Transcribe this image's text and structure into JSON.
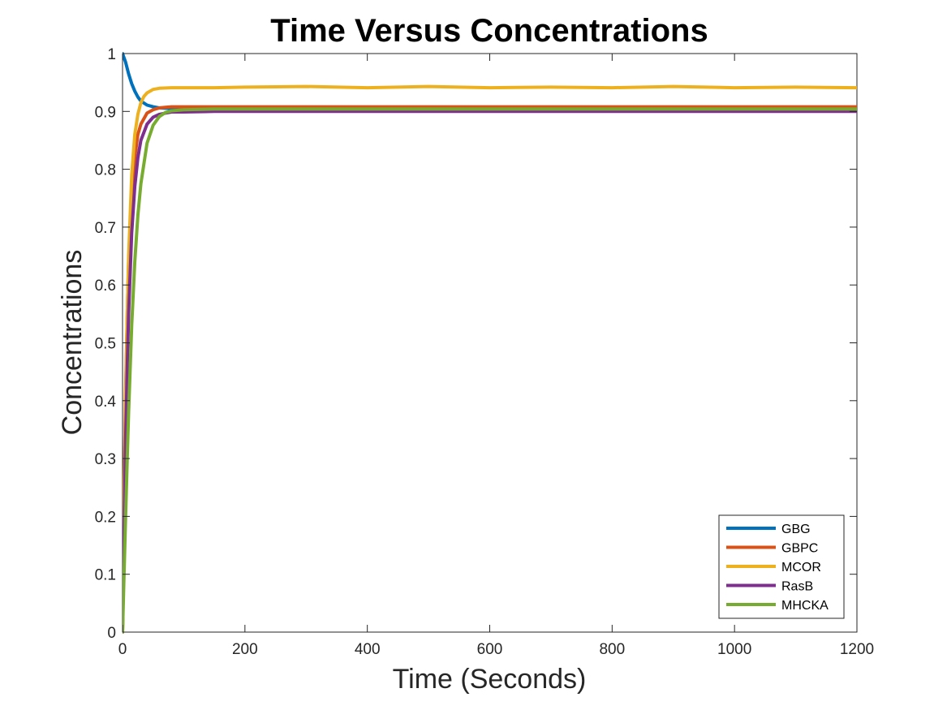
{
  "chart_data": {
    "type": "line",
    "title": "Time Versus Concentrations",
    "xlabel": "Time (Seconds)",
    "ylabel": "Concentrations",
    "xlim": [
      0,
      1200
    ],
    "ylim": [
      0,
      1
    ],
    "xticks": [
      0,
      200,
      400,
      600,
      800,
      1000,
      1200
    ],
    "xtick_labels": [
      "0",
      "200",
      "400",
      "600",
      "800",
      "1000",
      "1200"
    ],
    "yticks": [
      0,
      0.1,
      0.2,
      0.3,
      0.4,
      0.5,
      0.6,
      0.7,
      0.8,
      0.9,
      1
    ],
    "ytick_labels": [
      "0",
      "0.1",
      "0.2",
      "0.3",
      "0.4",
      "0.5",
      "0.6",
      "0.7",
      "0.8",
      "0.9",
      "1"
    ],
    "grid": false,
    "legend_position": "bottom-right",
    "series": [
      {
        "name": "GBG",
        "color": "#0072BD",
        "x": [
          0,
          5,
          10,
          15,
          20,
          25,
          30,
          40,
          50,
          60,
          80,
          100,
          150,
          200,
          400,
          600,
          800,
          1000,
          1200
        ],
        "y": [
          1.0,
          0.985,
          0.965,
          0.948,
          0.935,
          0.925,
          0.918,
          0.911,
          0.908,
          0.906,
          0.905,
          0.905,
          0.905,
          0.905,
          0.905,
          0.905,
          0.905,
          0.905,
          0.905
        ]
      },
      {
        "name": "GBPC",
        "color": "#D95319",
        "x": [
          0,
          2,
          5,
          8,
          10,
          15,
          20,
          25,
          30,
          40,
          50,
          60,
          70,
          80,
          100,
          150,
          200,
          400,
          600,
          800,
          1000,
          1200
        ],
        "y": [
          0.0,
          0.2,
          0.42,
          0.56,
          0.64,
          0.755,
          0.82,
          0.86,
          0.878,
          0.897,
          0.903,
          0.906,
          0.907,
          0.908,
          0.908,
          0.908,
          0.908,
          0.908,
          0.908,
          0.908,
          0.908,
          0.908
        ]
      },
      {
        "name": "MCOR",
        "color": "#EDB120",
        "x": [
          0,
          2,
          5,
          8,
          10,
          15,
          20,
          25,
          30,
          35,
          40,
          50,
          60,
          80,
          100,
          150,
          200,
          300,
          400,
          500,
          600,
          700,
          800,
          900,
          1000,
          1100,
          1200
        ],
        "y": [
          0.0,
          0.18,
          0.4,
          0.56,
          0.65,
          0.79,
          0.86,
          0.895,
          0.915,
          0.926,
          0.932,
          0.938,
          0.94,
          0.941,
          0.941,
          0.941,
          0.942,
          0.943,
          0.941,
          0.943,
          0.941,
          0.942,
          0.941,
          0.943,
          0.941,
          0.942,
          0.941
        ]
      },
      {
        "name": "RasB",
        "color": "#7E2F8E",
        "x": [
          0,
          2,
          5,
          8,
          10,
          15,
          20,
          25,
          30,
          40,
          50,
          60,
          70,
          80,
          100,
          150,
          200,
          400,
          600,
          800,
          1000,
          1200
        ],
        "y": [
          0.0,
          0.14,
          0.33,
          0.47,
          0.55,
          0.69,
          0.77,
          0.82,
          0.85,
          0.878,
          0.89,
          0.895,
          0.897,
          0.899,
          0.899,
          0.9,
          0.9,
          0.9,
          0.9,
          0.9,
          0.9,
          0.9
        ]
      },
      {
        "name": "MHCKA",
        "color": "#77AC30",
        "x": [
          0,
          2,
          5,
          8,
          10,
          15,
          20,
          25,
          30,
          40,
          50,
          60,
          70,
          80,
          100,
          150,
          200,
          400,
          600,
          800,
          1000,
          1200
        ],
        "y": [
          0.0,
          0.08,
          0.2,
          0.31,
          0.38,
          0.53,
          0.64,
          0.72,
          0.775,
          0.845,
          0.876,
          0.891,
          0.898,
          0.901,
          0.903,
          0.904,
          0.904,
          0.904,
          0.904,
          0.904,
          0.904,
          0.904
        ]
      }
    ]
  }
}
